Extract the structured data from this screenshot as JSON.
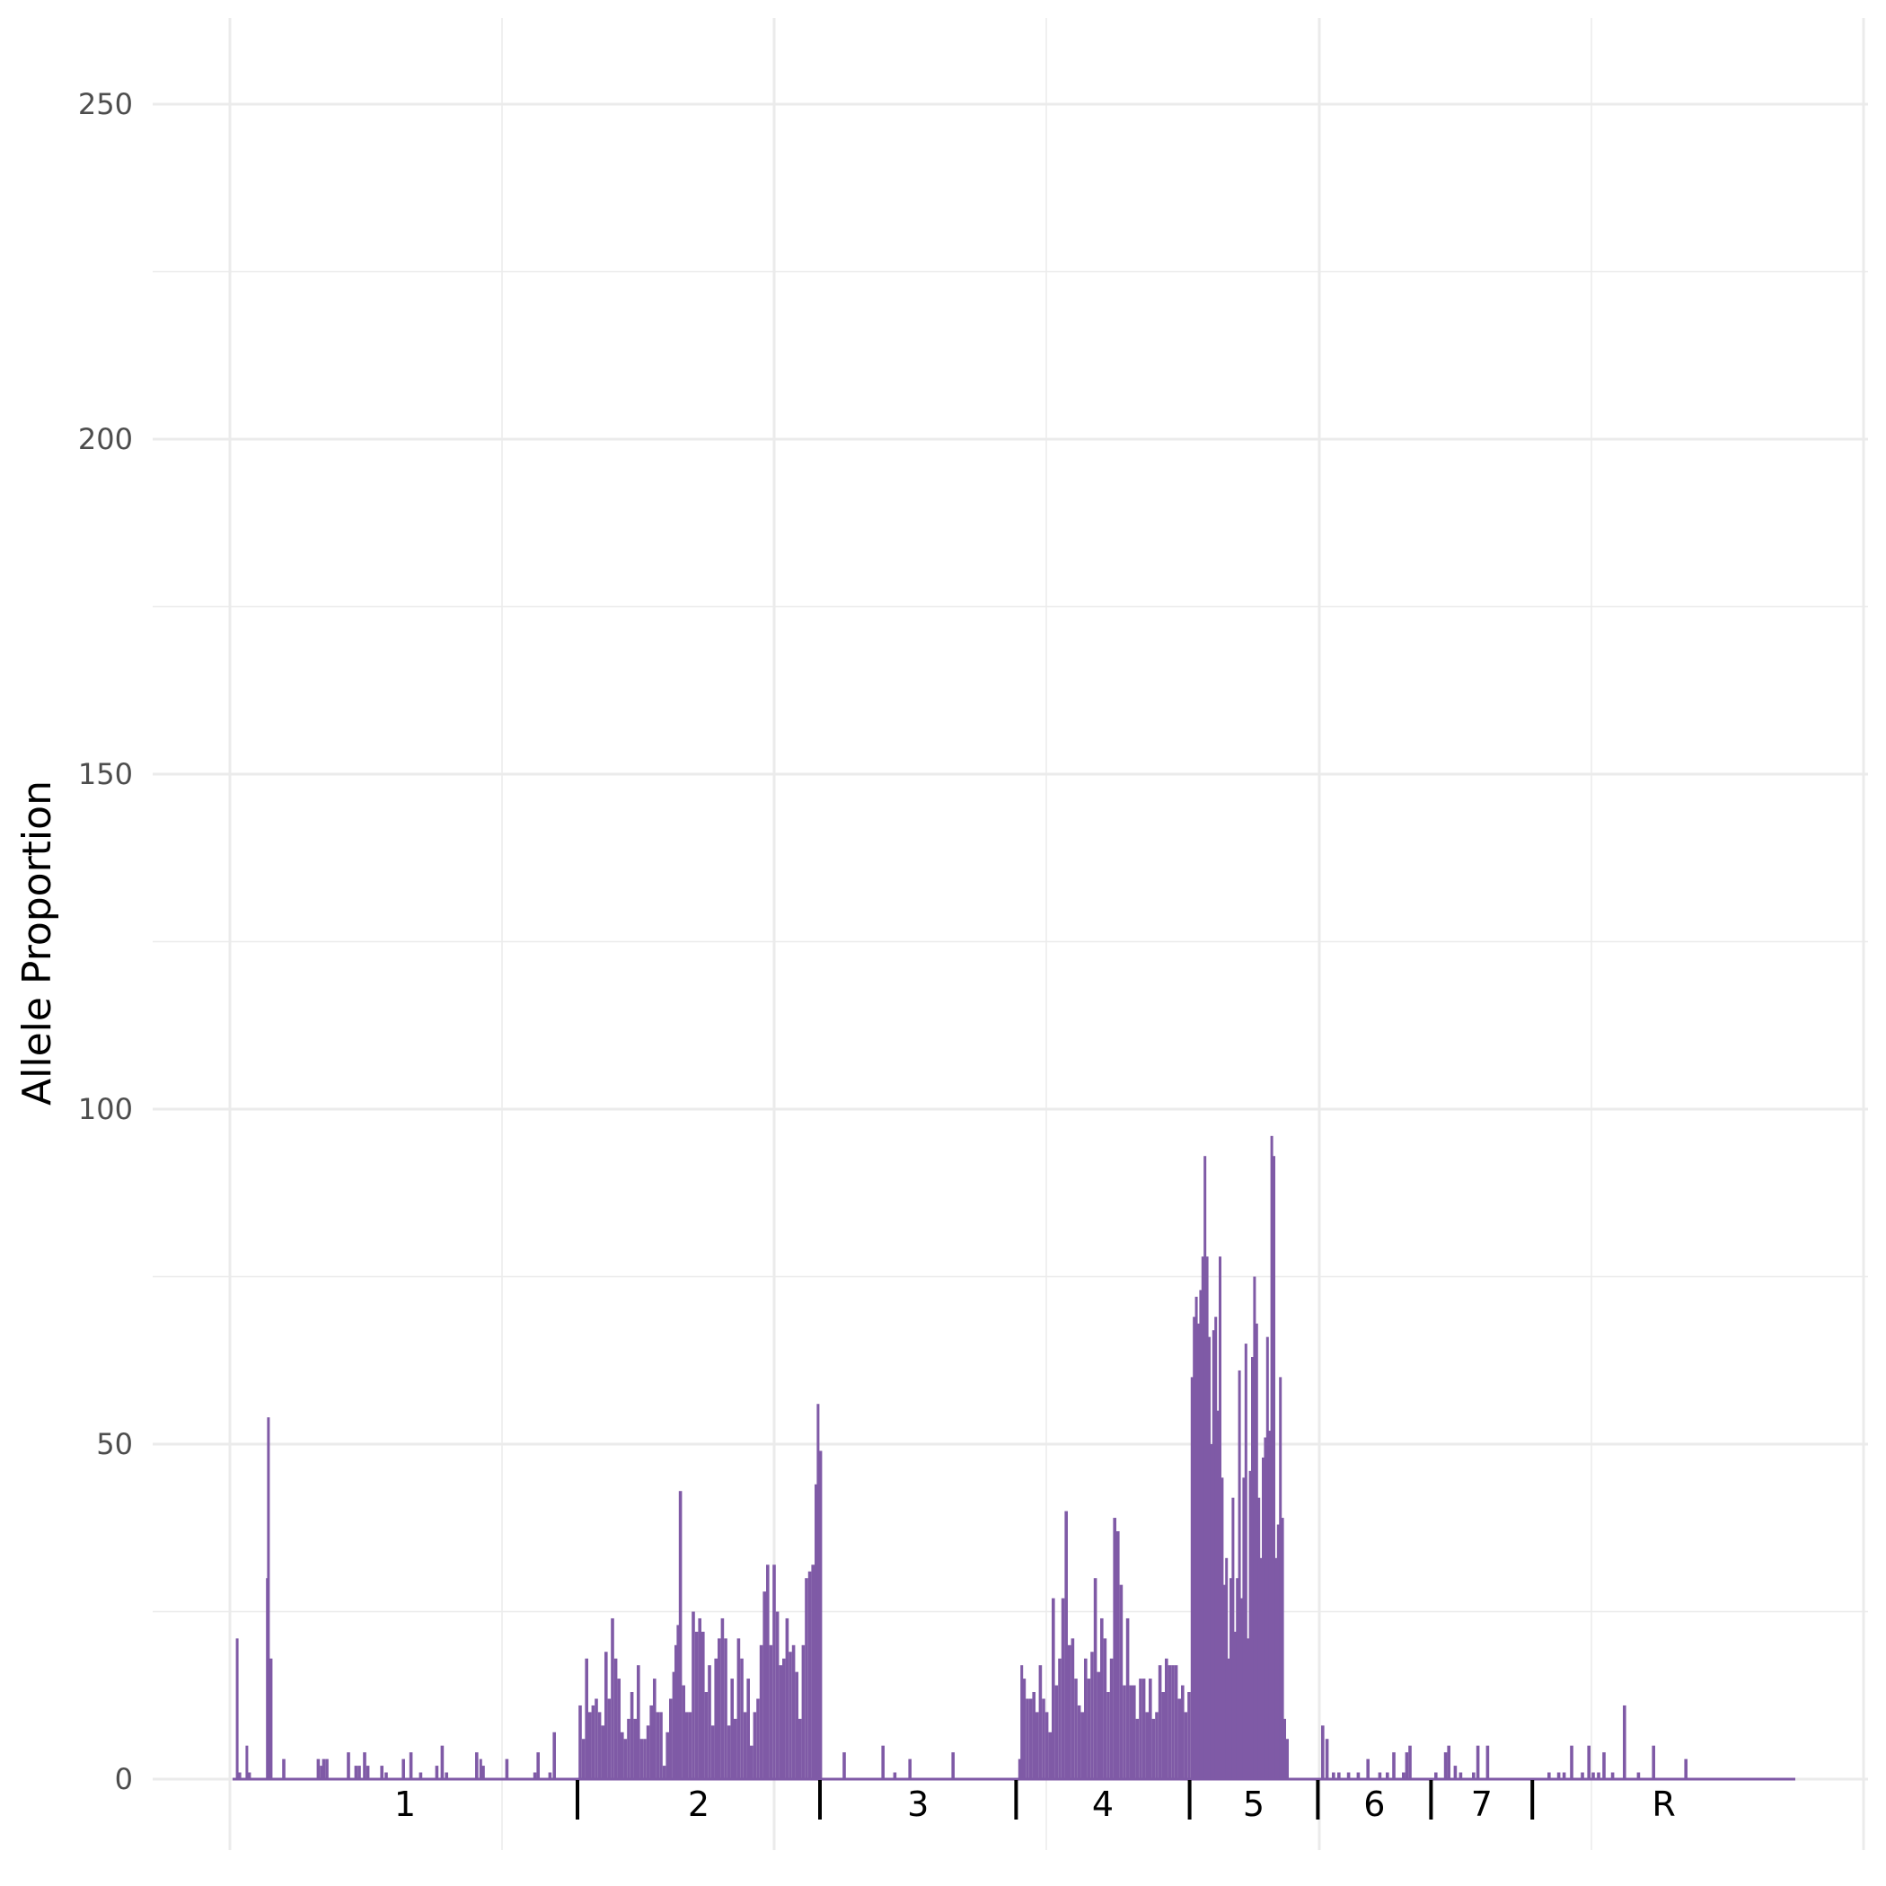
{
  "chart_data": {
    "type": "bar",
    "title": "",
    "xlabel": "",
    "ylabel": "Allele Proportion",
    "ylim": [
      0,
      262
    ],
    "yticks": [
      0,
      50,
      100,
      150,
      200,
      250
    ],
    "x_range": [
      0,
      1450
    ],
    "grid": true,
    "bar_color": "#7f5aa6",
    "segments": [
      {
        "label": "1",
        "start": 0,
        "end": 320
      },
      {
        "label": "2",
        "start": 320,
        "end": 545
      },
      {
        "label": "3",
        "start": 545,
        "end": 727
      },
      {
        "label": "4",
        "start": 727,
        "end": 888
      },
      {
        "label": "5",
        "start": 888,
        "end": 1007
      },
      {
        "label": "6",
        "start": 1007,
        "end": 1112
      },
      {
        "label": "7",
        "start": 1112,
        "end": 1206
      },
      {
        "label": "R",
        "start": 1206,
        "end": 1450
      }
    ],
    "series": [
      {
        "values": [
          [
            3,
            21
          ],
          [
            5,
            1
          ],
          [
            12,
            5
          ],
          [
            14,
            1
          ],
          [
            31,
            30
          ],
          [
            32,
            54
          ],
          [
            34,
            18
          ],
          [
            46,
            3
          ],
          [
            78,
            3
          ],
          [
            81,
            2
          ],
          [
            83,
            3
          ],
          [
            86,
            3
          ],
          [
            106,
            4
          ],
          [
            113,
            2
          ],
          [
            116,
            2
          ],
          [
            121,
            4
          ],
          [
            124,
            2
          ],
          [
            137,
            2
          ],
          [
            141,
            1
          ],
          [
            157,
            3
          ],
          [
            164,
            4
          ],
          [
            173,
            1
          ],
          [
            188,
            2
          ],
          [
            193,
            5
          ],
          [
            197,
            1
          ],
          [
            225,
            4
          ],
          [
            229,
            3
          ],
          [
            231,
            2
          ],
          [
            253,
            3
          ],
          [
            279,
            1
          ],
          [
            282,
            4
          ],
          [
            293,
            1
          ],
          [
            297,
            7
          ],
          [
            321,
            11
          ],
          [
            324,
            6
          ],
          [
            327,
            18
          ],
          [
            330,
            10
          ],
          [
            333,
            11
          ],
          [
            336,
            12
          ],
          [
            339,
            10
          ],
          [
            342,
            8
          ],
          [
            345,
            19
          ],
          [
            348,
            12
          ],
          [
            351,
            24
          ],
          [
            354,
            18
          ],
          [
            357,
            15
          ],
          [
            360,
            7
          ],
          [
            363,
            6
          ],
          [
            366,
            9
          ],
          [
            369,
            13
          ],
          [
            372,
            9
          ],
          [
            375,
            17
          ],
          [
            378,
            6
          ],
          [
            381,
            6
          ],
          [
            384,
            8
          ],
          [
            387,
            11
          ],
          [
            390,
            15
          ],
          [
            393,
            10
          ],
          [
            396,
            10
          ],
          [
            399,
            2
          ],
          [
            402,
            7
          ],
          [
            405,
            12
          ],
          [
            408,
            16
          ],
          [
            410,
            20
          ],
          [
            412,
            23
          ],
          [
            414,
            43
          ],
          [
            417,
            14
          ],
          [
            420,
            10
          ],
          [
            423,
            10
          ],
          [
            426,
            25
          ],
          [
            429,
            22
          ],
          [
            432,
            24
          ],
          [
            435,
            22
          ],
          [
            438,
            13
          ],
          [
            441,
            17
          ],
          [
            444,
            8
          ],
          [
            447,
            18
          ],
          [
            450,
            21
          ],
          [
            453,
            24
          ],
          [
            456,
            21
          ],
          [
            459,
            8
          ],
          [
            462,
            15
          ],
          [
            465,
            9
          ],
          [
            468,
            21
          ],
          [
            471,
            18
          ],
          [
            474,
            10
          ],
          [
            477,
            15
          ],
          [
            480,
            5
          ],
          [
            483,
            10
          ],
          [
            486,
            12
          ],
          [
            489,
            20
          ],
          [
            492,
            28
          ],
          [
            495,
            32
          ],
          [
            498,
            20
          ],
          [
            501,
            32
          ],
          [
            504,
            25
          ],
          [
            507,
            17
          ],
          [
            510,
            18
          ],
          [
            513,
            24
          ],
          [
            516,
            19
          ],
          [
            519,
            20
          ],
          [
            522,
            16
          ],
          [
            525,
            9
          ],
          [
            528,
            20
          ],
          [
            531,
            30
          ],
          [
            534,
            31
          ],
          [
            537,
            32
          ],
          [
            540,
            44
          ],
          [
            542,
            56
          ],
          [
            544,
            49
          ],
          [
            566,
            4
          ],
          [
            602,
            5
          ],
          [
            613,
            1
          ],
          [
            627,
            3
          ],
          [
            667,
            4
          ],
          [
            729,
            3
          ],
          [
            731,
            17
          ],
          [
            733,
            15
          ],
          [
            736,
            12
          ],
          [
            739,
            12
          ],
          [
            742,
            13
          ],
          [
            745,
            10
          ],
          [
            748,
            17
          ],
          [
            751,
            12
          ],
          [
            754,
            10
          ],
          [
            757,
            7
          ],
          [
            760,
            27
          ],
          [
            763,
            14
          ],
          [
            766,
            18
          ],
          [
            769,
            27
          ],
          [
            772,
            40
          ],
          [
            775,
            20
          ],
          [
            778,
            21
          ],
          [
            781,
            15
          ],
          [
            784,
            11
          ],
          [
            787,
            10
          ],
          [
            790,
            18
          ],
          [
            793,
            15
          ],
          [
            796,
            19
          ],
          [
            799,
            30
          ],
          [
            802,
            16
          ],
          [
            805,
            24
          ],
          [
            808,
            21
          ],
          [
            811,
            13
          ],
          [
            814,
            18
          ],
          [
            817,
            39
          ],
          [
            820,
            37
          ],
          [
            823,
            29
          ],
          [
            826,
            14
          ],
          [
            829,
            24
          ],
          [
            832,
            14
          ],
          [
            835,
            14
          ],
          [
            838,
            9
          ],
          [
            841,
            15
          ],
          [
            844,
            15
          ],
          [
            847,
            10
          ],
          [
            850,
            15
          ],
          [
            853,
            9
          ],
          [
            856,
            10
          ],
          [
            859,
            17
          ],
          [
            862,
            13
          ],
          [
            865,
            18
          ],
          [
            868,
            17
          ],
          [
            871,
            17
          ],
          [
            874,
            17
          ],
          [
            877,
            12
          ],
          [
            880,
            14
          ],
          [
            883,
            10
          ],
          [
            886,
            13
          ],
          [
            889,
            60
          ],
          [
            891,
            69
          ],
          [
            893,
            72
          ],
          [
            895,
            68
          ],
          [
            897,
            73
          ],
          [
            899,
            78
          ],
          [
            901,
            93
          ],
          [
            903,
            78
          ],
          [
            905,
            66
          ],
          [
            907,
            50
          ],
          [
            909,
            67
          ],
          [
            911,
            69
          ],
          [
            913,
            55
          ],
          [
            915,
            78
          ],
          [
            917,
            45
          ],
          [
            919,
            29
          ],
          [
            921,
            33
          ],
          [
            923,
            18
          ],
          [
            925,
            30
          ],
          [
            927,
            42
          ],
          [
            929,
            22
          ],
          [
            931,
            30
          ],
          [
            933,
            61
          ],
          [
            935,
            27
          ],
          [
            937,
            45
          ],
          [
            939,
            65
          ],
          [
            941,
            21
          ],
          [
            943,
            46
          ],
          [
            945,
            63
          ],
          [
            947,
            75
          ],
          [
            949,
            68
          ],
          [
            951,
            42
          ],
          [
            953,
            33
          ],
          [
            955,
            48
          ],
          [
            957,
            51
          ],
          [
            959,
            66
          ],
          [
            961,
            52
          ],
          [
            963,
            96
          ],
          [
            965,
            93
          ],
          [
            967,
            33
          ],
          [
            969,
            38
          ],
          [
            971,
            60
          ],
          [
            973,
            39
          ],
          [
            975,
            9
          ],
          [
            977,
            6
          ],
          [
            1010,
            8
          ],
          [
            1014,
            6
          ],
          [
            1020,
            1
          ],
          [
            1025,
            1
          ],
          [
            1034,
            1
          ],
          [
            1043,
            1
          ],
          [
            1052,
            3
          ],
          [
            1063,
            1
          ],
          [
            1070,
            1
          ],
          [
            1076,
            4
          ],
          [
            1085,
            1
          ],
          [
            1088,
            4
          ],
          [
            1091,
            5
          ],
          [
            1115,
            1
          ],
          [
            1124,
            4
          ],
          [
            1127,
            5
          ],
          [
            1133,
            2
          ],
          [
            1138,
            1
          ],
          [
            1150,
            1
          ],
          [
            1154,
            5
          ],
          [
            1163,
            5
          ],
          [
            1220,
            1
          ],
          [
            1229,
            1
          ],
          [
            1234,
            1
          ],
          [
            1241,
            5
          ],
          [
            1251,
            1
          ],
          [
            1257,
            5
          ],
          [
            1261,
            1
          ],
          [
            1266,
            1
          ],
          [
            1271,
            4
          ],
          [
            1279,
            1
          ],
          [
            1290,
            11
          ],
          [
            1303,
            1
          ],
          [
            1317,
            5
          ],
          [
            1347,
            3
          ]
        ]
      }
    ]
  }
}
